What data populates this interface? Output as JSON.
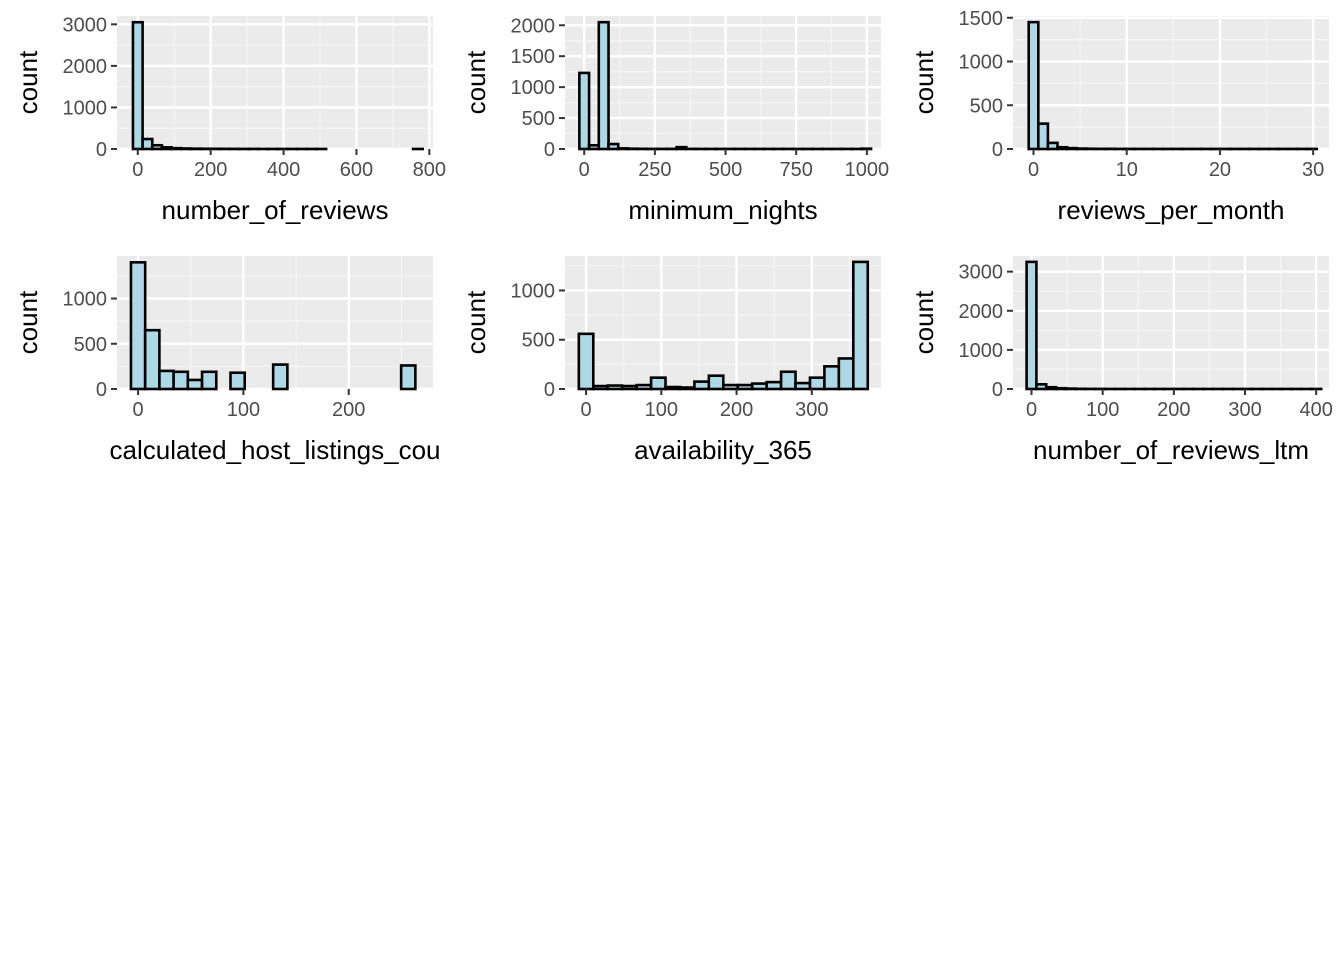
{
  "chart_data": [
    {
      "type": "bar",
      "xlabel": "number_of_reviews",
      "ylabel": "count",
      "bin_width": 26.5,
      "x_start": -13.25,
      "counts": [
        3050,
        240,
        90,
        40,
        20,
        12,
        8,
        6,
        5,
        4,
        3,
        2,
        2,
        1,
        1,
        1,
        1,
        1,
        1,
        1,
        0,
        0,
        0,
        0,
        0,
        0,
        0,
        0,
        0,
        1
      ],
      "xlim": [
        -57,
        810
      ],
      "ylim": [
        0,
        3200
      ],
      "xticks": [
        0,
        200,
        400,
        600,
        800
      ],
      "yticks": [
        0,
        1000,
        2000,
        3000
      ],
      "colors": {
        "fill": "#add8e6",
        "outline": "#000000"
      }
    },
    {
      "type": "bar",
      "xlabel": "minimum_nights",
      "ylabel": "count",
      "bin_width": 34.4,
      "x_start": -17.2,
      "counts": [
        1230,
        60,
        2050,
        80,
        10,
        5,
        3,
        2,
        2,
        2,
        30,
        2,
        1,
        1,
        1,
        1,
        1,
        1,
        1,
        1,
        1,
        1,
        1,
        1,
        1,
        1,
        1,
        1,
        1,
        5
      ],
      "xlim": [
        -68,
        1050
      ],
      "ylim": [
        0,
        2150
      ],
      "xticks": [
        0,
        250,
        500,
        750,
        1000
      ],
      "yticks": [
        0,
        500,
        1000,
        1500,
        2000
      ],
      "colors": {
        "fill": "#add8e6",
        "outline": "#000000"
      }
    },
    {
      "type": "bar",
      "xlabel": "reviews_per_month",
      "ylabel": "count",
      "bin_width": 1.03,
      "x_start": -0.515,
      "counts": [
        1450,
        290,
        70,
        20,
        10,
        5,
        3,
        2,
        2,
        1,
        1,
        1,
        1,
        1,
        1,
        1,
        1,
        1,
        1,
        1,
        1,
        1,
        1,
        1,
        1,
        1,
        1,
        1,
        1,
        1
      ],
      "xlim": [
        -2.2,
        31.7
      ],
      "ylim": [
        0,
        1520
      ],
      "xticks": [
        0,
        10,
        20,
        30
      ],
      "yticks": [
        0,
        500,
        1000,
        1500
      ],
      "colors": {
        "fill": "#add8e6",
        "outline": "#000000"
      }
    },
    {
      "type": "bar",
      "xlabel": "calculated_host_listings_cou",
      "ylabel": "count",
      "bin_width": 13.5,
      "x_start": -6.75,
      "counts": [
        1400,
        650,
        200,
        190,
        100,
        190,
        0,
        180,
        0,
        0,
        270,
        0,
        0,
        0,
        0,
        0,
        0,
        0,
        0,
        260
      ],
      "xlim": [
        -20,
        280
      ],
      "ylim": [
        0,
        1470
      ],
      "xticks": [
        0,
        100,
        200
      ],
      "yticks": [
        0,
        500,
        1000
      ],
      "colors": {
        "fill": "#add8e6",
        "outline": "#000000"
      }
    },
    {
      "type": "bar",
      "xlabel": "availability_365",
      "ylabel": "count",
      "bin_width": 19.2,
      "x_start": -9.6,
      "counts": [
        560,
        30,
        35,
        30,
        40,
        115,
        20,
        15,
        75,
        135,
        40,
        40,
        55,
        70,
        175,
        60,
        115,
        230,
        310,
        1290
      ],
      "xlim": [
        -28,
        392
      ],
      "ylim": [
        0,
        1350
      ],
      "xticks": [
        0,
        100,
        200,
        300
      ],
      "yticks": [
        0,
        500,
        1000
      ],
      "colors": {
        "fill": "#add8e6",
        "outline": "#000000"
      }
    },
    {
      "type": "bar",
      "xlabel": "number_of_reviews_ltm",
      "ylabel": "count",
      "bin_width": 13.8,
      "x_start": -6.9,
      "counts": [
        3250,
        120,
        45,
        20,
        10,
        5,
        3,
        2,
        1,
        1,
        1,
        1,
        1,
        1,
        1,
        1,
        1,
        1,
        1,
        1,
        1,
        1,
        1,
        1,
        1,
        1,
        1,
        1,
        1,
        1
      ],
      "xlim": [
        -26,
        418
      ],
      "ylim": [
        0,
        3400
      ],
      "xticks": [
        0,
        100,
        200,
        300,
        400
      ],
      "yticks": [
        0,
        1000,
        2000,
        3000
      ],
      "colors": {
        "fill": "#add8e6",
        "outline": "#000000"
      }
    }
  ]
}
